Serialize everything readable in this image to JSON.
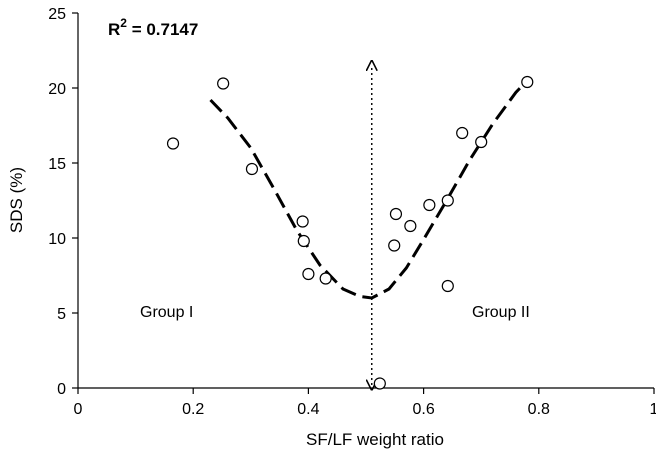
{
  "chart_data": {
    "type": "scatter",
    "xlabel": "SF/LF weight ratio",
    "ylabel": "SDS (%)",
    "xlim": [
      0,
      1
    ],
    "ylim": [
      0,
      25
    ],
    "x_ticks": [
      0,
      0.2,
      0.4,
      0.6,
      0.8,
      1
    ],
    "x_tick_labels": [
      "0",
      "0.2",
      "0.4",
      "0.6",
      "0.8",
      "1"
    ],
    "y_ticks": [
      0,
      5,
      10,
      15,
      20,
      25
    ],
    "y_tick_labels": [
      "0",
      "5",
      "10",
      "15",
      "20",
      "25"
    ],
    "grid": false,
    "r2_label": "R",
    "r2_sup": "2",
    "r2_value": " = 0.7147",
    "annotations": {
      "group1": "Group I",
      "group2": "Group II"
    },
    "points": [
      {
        "x": 0.165,
        "y": 16.3
      },
      {
        "x": 0.252,
        "y": 20.3
      },
      {
        "x": 0.302,
        "y": 14.6
      },
      {
        "x": 0.39,
        "y": 11.1
      },
      {
        "x": 0.392,
        "y": 9.8
      },
      {
        "x": 0.4,
        "y": 7.6
      },
      {
        "x": 0.43,
        "y": 7.3
      },
      {
        "x": 0.524,
        "y": 0.3
      },
      {
        "x": 0.549,
        "y": 9.5
      },
      {
        "x": 0.552,
        "y": 11.6
      },
      {
        "x": 0.577,
        "y": 10.8
      },
      {
        "x": 0.61,
        "y": 12.2
      },
      {
        "x": 0.642,
        "y": 12.5
      },
      {
        "x": 0.642,
        "y": 6.8
      },
      {
        "x": 0.667,
        "y": 17.0
      },
      {
        "x": 0.7,
        "y": 16.4
      },
      {
        "x": 0.78,
        "y": 20.4
      }
    ],
    "fit_curve": [
      {
        "x": 0.23,
        "y": 19.2
      },
      {
        "x": 0.26,
        "y": 18.0
      },
      {
        "x": 0.3,
        "y": 16.0
      },
      {
        "x": 0.34,
        "y": 13.3
      },
      {
        "x": 0.38,
        "y": 10.5
      },
      {
        "x": 0.42,
        "y": 8.2
      },
      {
        "x": 0.46,
        "y": 6.6
      },
      {
        "x": 0.49,
        "y": 6.1
      },
      {
        "x": 0.51,
        "y": 6.0
      },
      {
        "x": 0.54,
        "y": 6.6
      },
      {
        "x": 0.57,
        "y": 8.0
      },
      {
        "x": 0.6,
        "y": 9.9
      },
      {
        "x": 0.64,
        "y": 12.5
      },
      {
        "x": 0.68,
        "y": 15.2
      },
      {
        "x": 0.72,
        "y": 17.6
      },
      {
        "x": 0.76,
        "y": 19.7
      },
      {
        "x": 0.77,
        "y": 20.1
      }
    ],
    "divider_x": 0.51,
    "divider_y_range": [
      0.2,
      21.5
    ]
  }
}
